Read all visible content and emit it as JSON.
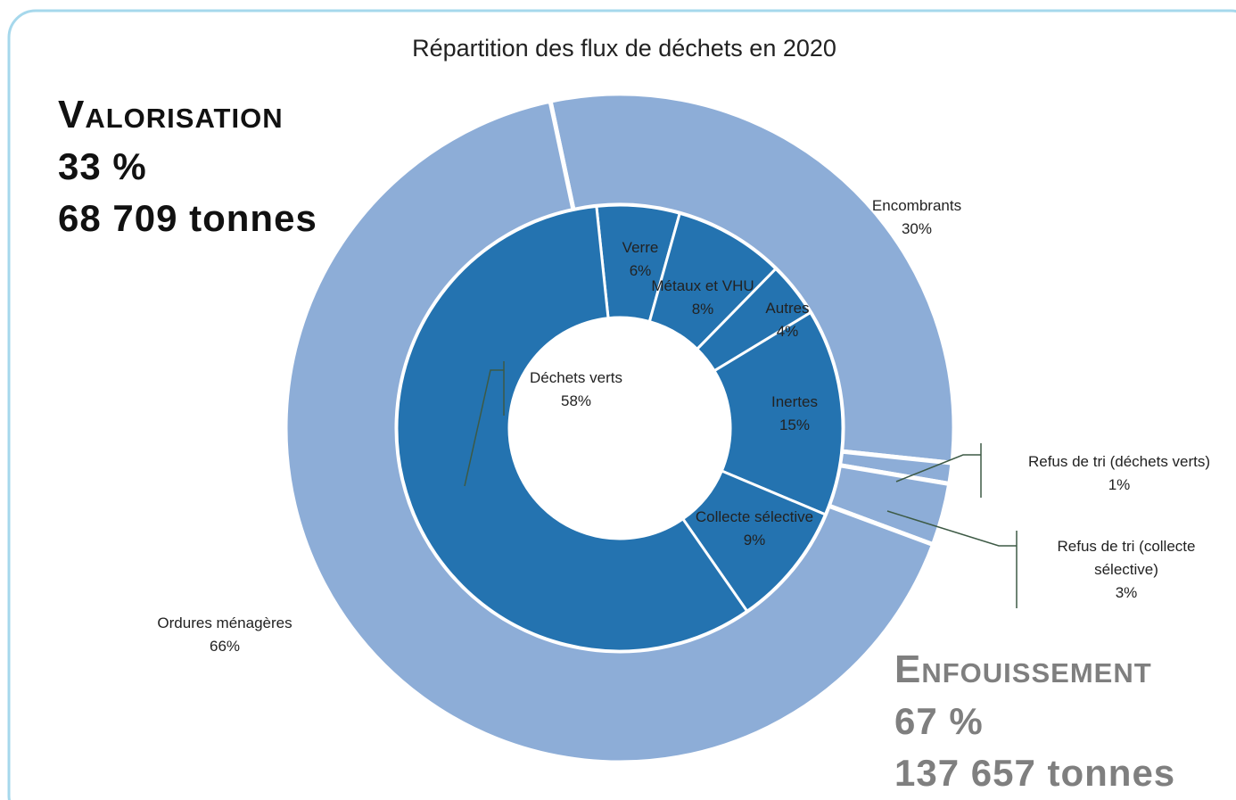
{
  "chart_data": {
    "type": "nested-donut",
    "title": "Répartition des flux de déchets en 2020",
    "series": [
      {
        "name": "Enfouissement",
        "color": "#8DADD7",
        "categories": [
          "Encombrants",
          "Refus de tri (déchets verts)",
          "Refus de tri (collecte sélective)",
          "Ordures ménagères"
        ],
        "values": [
          30,
          1,
          3,
          66
        ],
        "value_labels": [
          "30%",
          "1%",
          "3%",
          "66%"
        ]
      },
      {
        "name": "Valorisation",
        "color": "#2473B0",
        "categories": [
          "Verre",
          "Métaux et VHU",
          "Autres",
          "Inertes",
          "Collecte sélective",
          "Déchets verts"
        ],
        "values": [
          6,
          8,
          4,
          15,
          9,
          58
        ],
        "value_labels": [
          "6%",
          "8%",
          "4%",
          "15%",
          "9%",
          "58%"
        ]
      }
    ],
    "annotations": [
      {
        "title": "Valorisation",
        "percent": "33 %",
        "tonnage": "68 709 tonnes"
      },
      {
        "title": "Enfouissement",
        "percent": "67 %",
        "tonnage": "137 657 tonnes"
      }
    ]
  }
}
